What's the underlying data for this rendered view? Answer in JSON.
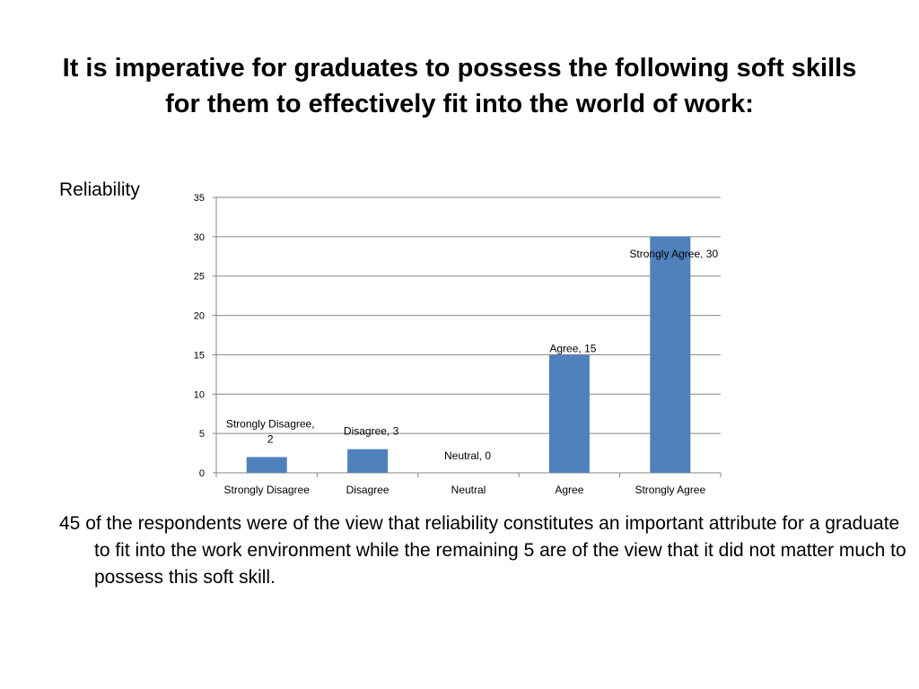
{
  "slide": {
    "title_line1": "It is imperative for graduates to possess the following soft skills",
    "title_line2": "for them to effectively fit into the world of work:",
    "label": "Reliability",
    "body": "45 of the respondents were of the view that reliability constitutes an important attribute for a graduate to fit into the work environment while the remaining 5 are of the view that it did not matter much to possess this soft skill."
  },
  "chart_data": {
    "type": "bar",
    "categories": [
      "Strongly Disagree",
      "Disagree",
      "Neutral",
      "Agree",
      "Strongly Agree"
    ],
    "values": [
      2,
      3,
      0,
      15,
      30
    ],
    "data_labels": [
      [
        "Strongly Disagree,",
        "2"
      ],
      [
        "Disagree, 3"
      ],
      [
        "Neutral, 0"
      ],
      [
        "Agree, 15"
      ],
      [
        "Strongly Agree, 30"
      ]
    ],
    "y_ticks": [
      0,
      5,
      10,
      15,
      20,
      25,
      30,
      35
    ],
    "ylim": [
      0,
      35
    ],
    "grid": true,
    "legend": "none",
    "bar_color": "#4f81bd",
    "grid_color": "#868686"
  }
}
